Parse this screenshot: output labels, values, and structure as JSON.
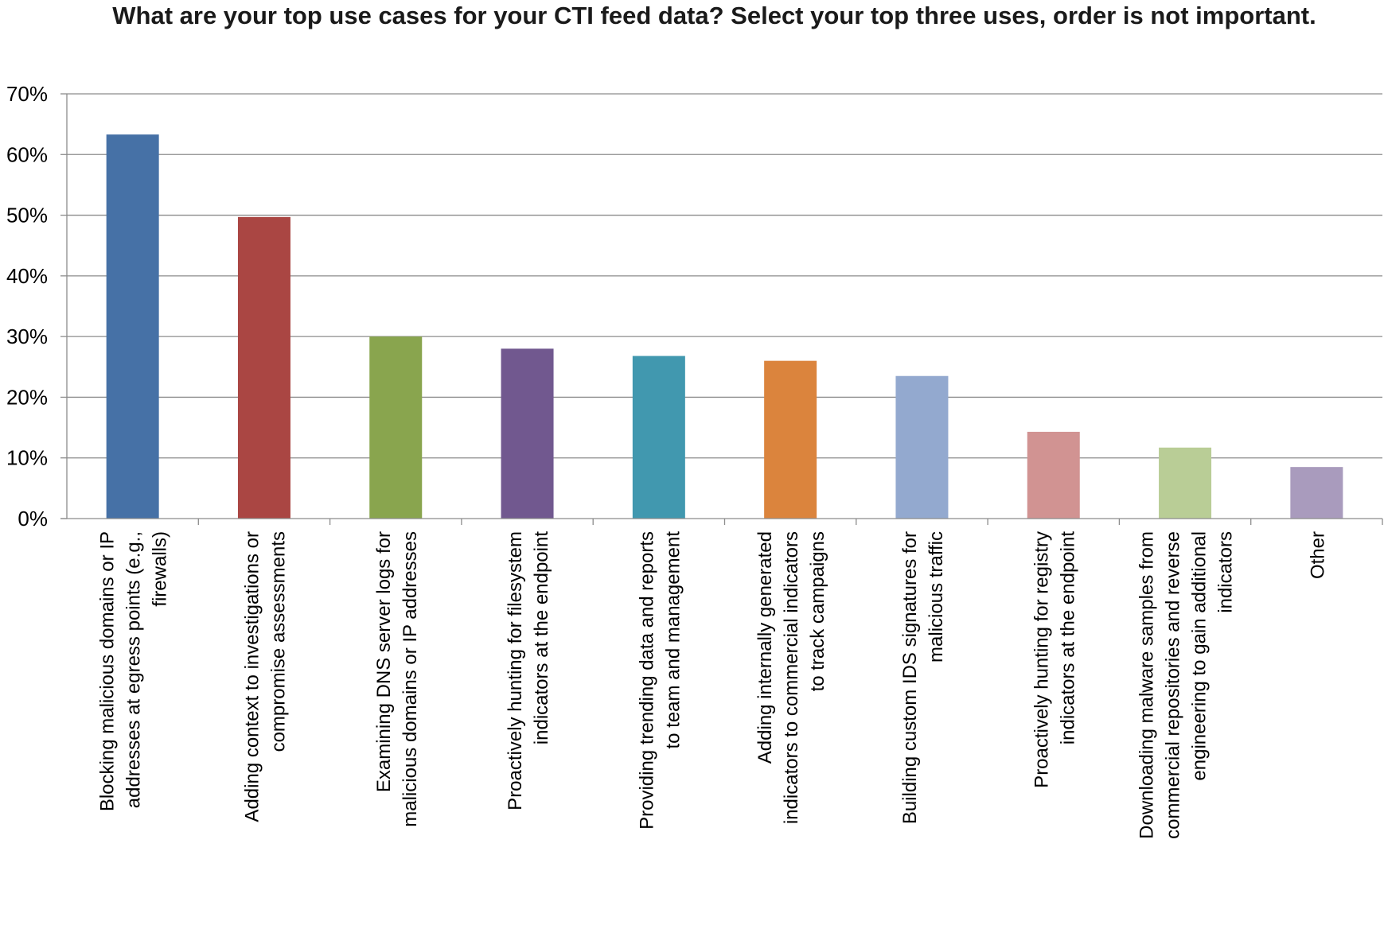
{
  "chart_data": {
    "type": "bar",
    "title": "What are your top use cases for your CTI feed data? Select your top three uses, order is not important.",
    "xlabel": "",
    "ylabel": "",
    "ylim": [
      0,
      70
    ],
    "ytick_step": 10,
    "ytick_labels": [
      "0%",
      "10%",
      "20%",
      "30%",
      "40%",
      "50%",
      "60%",
      "70%"
    ],
    "grid": true,
    "legend": "none",
    "categories": [
      "Blocking malicious domains or IP addresses at egress points (e.g., firewalls)",
      "Adding context to investigations or compromise assessments",
      "Examining DNS server logs for malicious domains or IP addresses",
      "Proactively hunting for filesystem indicators at the endpoint",
      "Providing trending data and reports to team and management",
      "Adding internally generated indicators to commercial indicators to track campaigns",
      "Building custom IDS signatures for malicious traffic",
      "Proactively hunting for registry indicators at the endpoint",
      "Downloading malware samples from commercial repositories and reverse engineering to gain additional indicators",
      "Other"
    ],
    "category_label_lines": [
      [
        "Blocking malicious domains or IP",
        "addresses at egress points (e.g.,",
        "firewalls)"
      ],
      [
        "Adding context to investigations or",
        "compromise assessments"
      ],
      [
        "Examining DNS server logs for",
        "malicious domains or IP addresses"
      ],
      [
        "Proactively hunting for filesystem",
        "indicators at the endpoint"
      ],
      [
        "Providing trending data and reports",
        "to team and management"
      ],
      [
        "Adding internally generated",
        "indicators to commercial indicators",
        "to track campaigns"
      ],
      [
        "Building custom IDS signatures for",
        "malicious traffic"
      ],
      [
        "Proactively hunting for registry",
        "indicators at the endpoint"
      ],
      [
        "Downloading malware samples from",
        "commercial repositories and reverse",
        "engineering to gain additional",
        "indicators"
      ],
      [
        "Other"
      ]
    ],
    "values": [
      63.3,
      49.7,
      30.0,
      28.0,
      26.8,
      26.0,
      23.5,
      14.3,
      11.7,
      8.5
    ],
    "colors": [
      "#4671A6",
      "#AA4643",
      "#89A54E",
      "#71588F",
      "#4198AF",
      "#DB843D",
      "#93A9CF",
      "#D19392",
      "#B9CD96",
      "#A99BBD"
    ]
  }
}
